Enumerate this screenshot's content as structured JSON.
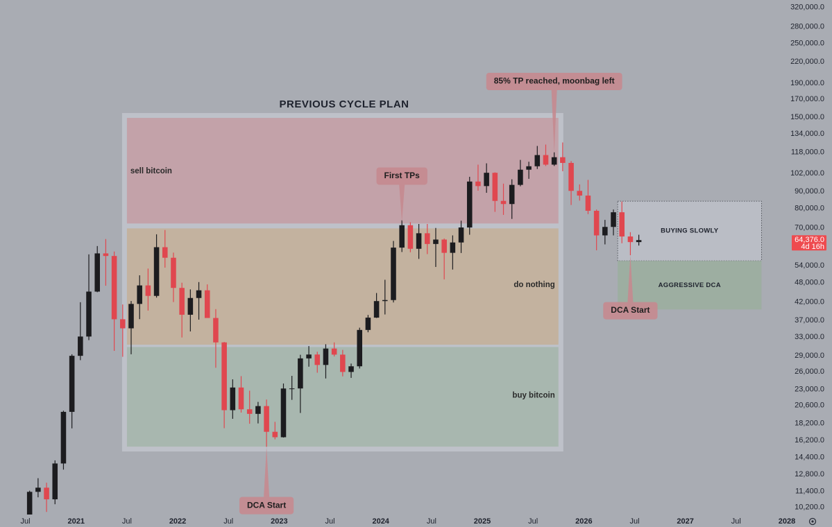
{
  "chart_data": {
    "type": "candlestick",
    "title": "PREVIOUS CYCLE PLAN",
    "log_scale": true,
    "up_color": "#1c1c1f",
    "down_color": "#e0474f",
    "xlim": [
      "2020-04",
      "2028-01"
    ],
    "ylim": [
      9800,
      337000
    ],
    "x": [
      "2020-07",
      "2020-08",
      "2020-09",
      "2020-10",
      "2020-11",
      "2020-12",
      "2021-01",
      "2021-02",
      "2021-03",
      "2021-04",
      "2021-05",
      "2021-06",
      "2021-07",
      "2021-08",
      "2021-09",
      "2021-10",
      "2021-11",
      "2021-12",
      "2022-01",
      "2022-02",
      "2022-03",
      "2022-04",
      "2022-05",
      "2022-06",
      "2022-07",
      "2022-08",
      "2022-09",
      "2022-10",
      "2022-11",
      "2022-12",
      "2023-01",
      "2023-02",
      "2023-03",
      "2023-04",
      "2023-05",
      "2023-06",
      "2023-07",
      "2023-08",
      "2023-09",
      "2023-10",
      "2023-11",
      "2023-12",
      "2024-01",
      "2024-02",
      "2024-03",
      "2024-04",
      "2024-05",
      "2024-06",
      "2024-07",
      "2024-08",
      "2024-09",
      "2024-10",
      "2024-11",
      "2024-12",
      "2025-01",
      "2025-02",
      "2025-03",
      "2025-04",
      "2025-05",
      "2025-06",
      "2025-07",
      "2025-08",
      "2025-09",
      "2025-10",
      "2025-11",
      "2025-12",
      "2026-01",
      "2026-02",
      "2026-03",
      "2026-04",
      "2026-05",
      "2026-06",
      "2026-07"
    ],
    "open": [
      9140,
      11350,
      11680,
      10780,
      13800,
      19700,
      28990,
      33110,
      45140,
      58740,
      57700,
      37300,
      35040,
      41460,
      47100,
      43820,
      61300,
      57000,
      46300,
      38480,
      43190,
      45540,
      37630,
      31800,
      19930,
      23300,
      20050,
      19430,
      20500,
      17170,
      16540,
      23140,
      23150,
      28480,
      29250,
      27220,
      30480,
      29230,
      25940,
      26970,
      34650,
      37720,
      42280,
      42580,
      61130,
      71330,
      60640,
      67490,
      62680,
      64620,
      58970,
      63330,
      70220,
      96400,
      93430,
      102400,
      84350,
      82550,
      94200,
      104600,
      107100,
      115700,
      108300,
      114000,
      109600,
      90400,
      87500,
      78800,
      66500,
      70500,
      78000,
      66000,
      63500
    ],
    "high": [
      11440,
      12470,
      12090,
      14100,
      19860,
      29300,
      41950,
      58350,
      61790,
      64850,
      59500,
      41300,
      42300,
      50500,
      52900,
      67000,
      69000,
      59050,
      47990,
      45820,
      48200,
      47440,
      40000,
      31900,
      24650,
      25200,
      22800,
      21100,
      21450,
      18390,
      23950,
      25250,
      29200,
      31000,
      29820,
      31400,
      31800,
      30200,
      27480,
      35200,
      38420,
      44700,
      48970,
      64000,
      73800,
      72800,
      71950,
      71950,
      70000,
      65100,
      66500,
      73600,
      99600,
      108300,
      109300,
      102700,
      95000,
      97900,
      111900,
      110500,
      123200,
      124400,
      117900,
      126200,
      111000,
      94500,
      97500,
      79500,
      74000,
      79500,
      84000,
      68000,
      66800
    ],
    "low": [
      8970,
      10930,
      9880,
      10420,
      13230,
      17580,
      28130,
      32300,
      44950,
      47000,
      30000,
      28800,
      29300,
      37330,
      39600,
      43300,
      53250,
      42000,
      32900,
      34300,
      37200,
      37700,
      26700,
      17600,
      18780,
      19600,
      18150,
      18190,
      15480,
      16300,
      16500,
      21400,
      19550,
      26900,
      25800,
      24800,
      28860,
      25160,
      24900,
      26560,
      34100,
      37630,
      38550,
      41880,
      59300,
      59190,
      56550,
      58450,
      53500,
      49100,
      52550,
      58900,
      66800,
      90500,
      89200,
      78200,
      76600,
      74500,
      93300,
      98200,
      105100,
      107300,
      107300,
      103500,
      82000,
      84500,
      77000,
      60000,
      62500,
      66500,
      63000,
      58000,
      62000
    ],
    "close": [
      11350,
      11680,
      10780,
      13800,
      19700,
      28990,
      33110,
      45140,
      58740,
      57700,
      37300,
      35040,
      41460,
      47100,
      43820,
      61300,
      57000,
      46300,
      38480,
      43190,
      45540,
      37630,
      31800,
      19930,
      23300,
      20050,
      19430,
      20500,
      17170,
      16540,
      23140,
      23150,
      28480,
      29250,
      27220,
      30480,
      29230,
      25940,
      26970,
      34650,
      37720,
      42280,
      42580,
      61130,
      71330,
      60640,
      67490,
      62680,
      64620,
      58970,
      63330,
      70220,
      96400,
      93430,
      102400,
      84350,
      82550,
      94200,
      104600,
      107100,
      115700,
      108300,
      114000,
      109600,
      90400,
      87500,
      78800,
      66500,
      70500,
      78000,
      66000,
      63500,
      64376
    ],
    "yticks": [
      {
        "value": 320000,
        "label": "320,000.0"
      },
      {
        "value": 280000,
        "label": "280,000.0"
      },
      {
        "value": 250000,
        "label": "250,000.0"
      },
      {
        "value": 220000,
        "label": "220,000.0"
      },
      {
        "value": 190000,
        "label": "190,000.0"
      },
      {
        "value": 170000,
        "label": "170,000.0"
      },
      {
        "value": 150000,
        "label": "150,000.0"
      },
      {
        "value": 134000,
        "label": "134,000.0"
      },
      {
        "value": 118000,
        "label": "118,000.0"
      },
      {
        "value": 102000,
        "label": "102,000.0"
      },
      {
        "value": 90000,
        "label": "90,000.0"
      },
      {
        "value": 80000,
        "label": "80,000.0"
      },
      {
        "value": 70000,
        "label": "70,000.0"
      },
      {
        "value": 54000,
        "label": "54,000.0"
      },
      {
        "value": 48000,
        "label": "48,000.0"
      },
      {
        "value": 42000,
        "label": "42,000.0"
      },
      {
        "value": 37000,
        "label": "37,000.0"
      },
      {
        "value": 33000,
        "label": "33,000.0"
      },
      {
        "value": 29000,
        "label": "29,000.0"
      },
      {
        "value": 26000,
        "label": "26,000.0"
      },
      {
        "value": 23000,
        "label": "23,000.0"
      },
      {
        "value": 20600,
        "label": "20,600.0"
      },
      {
        "value": 18200,
        "label": "18,200.0"
      },
      {
        "value": 16200,
        "label": "16,200.0"
      },
      {
        "value": 14400,
        "label": "14,400.0"
      },
      {
        "value": 12800,
        "label": "12,800.0"
      },
      {
        "value": 11400,
        "label": "11,400.0"
      },
      {
        "value": 10200,
        "label": "10,200.0"
      }
    ],
    "xticks": [
      {
        "value": "2020-07",
        "label": "Jul"
      },
      {
        "value": "2021-01",
        "label": "2021"
      },
      {
        "value": "2021-07",
        "label": "Jul"
      },
      {
        "value": "2022-01",
        "label": "2022"
      },
      {
        "value": "2022-07",
        "label": "Jul"
      },
      {
        "value": "2023-01",
        "label": "2023"
      },
      {
        "value": "2023-07",
        "label": "Jul"
      },
      {
        "value": "2024-01",
        "label": "2024"
      },
      {
        "value": "2024-07",
        "label": "Jul"
      },
      {
        "value": "2025-01",
        "label": "2025"
      },
      {
        "value": "2025-07",
        "label": "Jul"
      },
      {
        "value": "2026-01",
        "label": "2026"
      },
      {
        "value": "2026-07",
        "label": "Jul"
      },
      {
        "value": "2027-01",
        "label": "2027"
      },
      {
        "value": "2027-07",
        "label": "Jul"
      },
      {
        "value": "2028-01",
        "label": "2028"
      }
    ],
    "zones": [
      {
        "label": "sell bitcoin",
        "start": "2021-07",
        "end": "2025-10",
        "price_low": 72200,
        "price_high": 149500,
        "color": "#c3a2a9"
      },
      {
        "label": "do nothing",
        "start": "2021-07",
        "end": "2025-10",
        "price_low": 31300,
        "price_high": 69800,
        "color": "#c3b29f"
      },
      {
        "label": "buy bitcoin",
        "start": "2021-07",
        "end": "2025-10",
        "price_low": 15500,
        "price_high": 30800,
        "color": "#a8b7af"
      },
      {
        "label": "BUYING SLOWLY",
        "start": "2026-05",
        "end": "2027-10",
        "price_low": 55800,
        "price_high": 84200,
        "color": "#babdc5"
      },
      {
        "label": "AGGRESSIVE DCA",
        "start": "2026-05",
        "end": "2027-10",
        "price_low": 39900,
        "price_high": 55800,
        "color": "#9dae a1"
      }
    ],
    "callouts": [
      {
        "label": "DCA Start",
        "x": "2022-11",
        "price": 15500
      },
      {
        "label": "First TPs",
        "x": "2024-03",
        "price": 73000
      },
      {
        "label": "85% TP reached, moonbag left",
        "x": "2025-09",
        "price": 118000
      },
      {
        "label": "DCA Start",
        "x": "2026-06",
        "price": 58000
      }
    ],
    "last_price": {
      "value": 64376,
      "label": "64,376.0"
    },
    "countdown": "4d 16h"
  }
}
